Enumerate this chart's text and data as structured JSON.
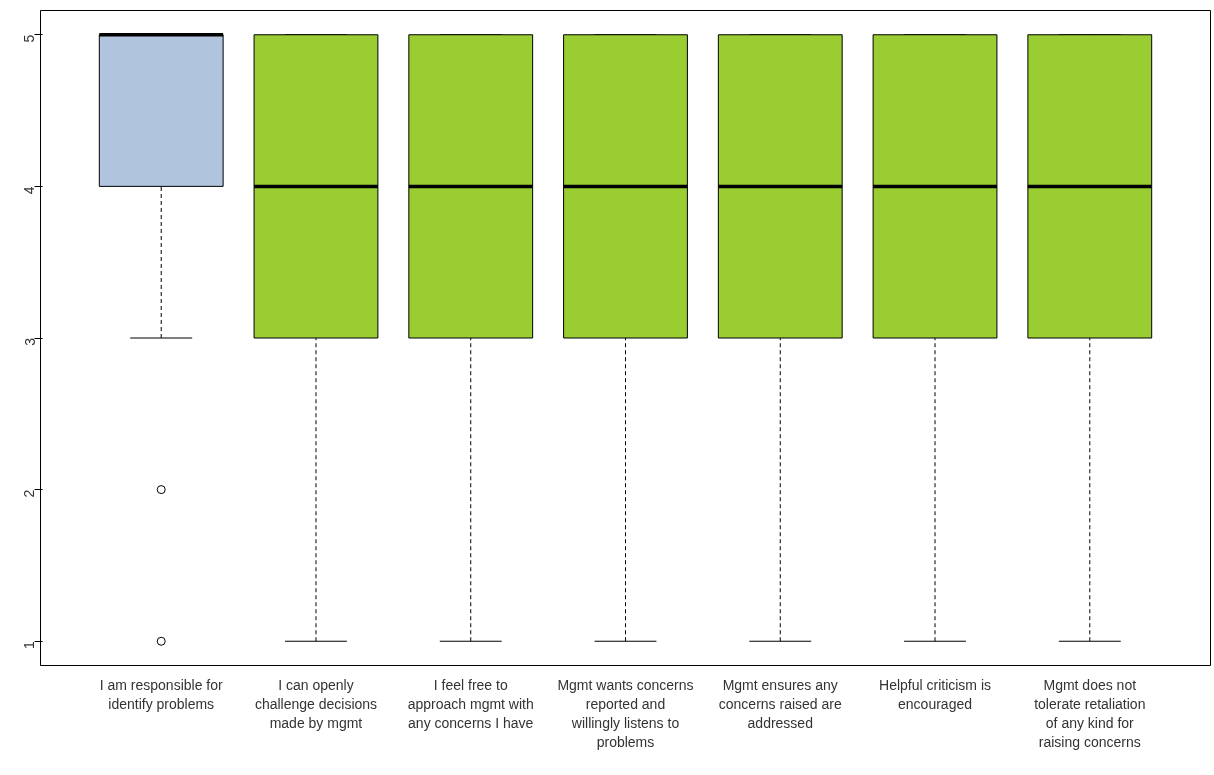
{
  "chart_data": {
    "type": "box",
    "categories": [
      "I am responsible for identify problems",
      "I can openly challenge decisions made by mgmt",
      "I feel free to approach mgmt with any concerns I have",
      "Mgmt wants concerns reported and willingly listens to problems",
      "Mgmt ensures any concerns raised are addressed",
      "Helpful criticism is encouraged",
      "Mgmt does not tolerate retaliation of any kind for raising concerns"
    ],
    "colors": [
      "#b0c4de",
      "#9acd32",
      "#9acd32",
      "#9acd32",
      "#9acd32",
      "#9acd32",
      "#9acd32"
    ],
    "boxes": [
      {
        "low": 3,
        "q1": 4,
        "median": 5,
        "q3": 5,
        "high": 5,
        "outliers": [
          2,
          1
        ]
      },
      {
        "low": 1,
        "q1": 3,
        "median": 4,
        "q3": 5,
        "high": 5
      },
      {
        "low": 1,
        "q1": 3,
        "median": 4,
        "q3": 5,
        "high": 5
      },
      {
        "low": 1,
        "q1": 3,
        "median": 4,
        "q3": 5,
        "high": 5
      },
      {
        "low": 1,
        "q1": 3,
        "median": 4,
        "q3": 5,
        "high": 5
      },
      {
        "low": 1,
        "q1": 3,
        "median": 4,
        "q3": 5,
        "high": 5
      },
      {
        "low": 1,
        "q1": 3,
        "median": 4,
        "q3": 5,
        "high": 5
      }
    ],
    "ylim": [
      0.84,
      5.16
    ],
    "yticks": [
      1,
      2,
      3,
      4,
      5
    ],
    "grid": false
  }
}
